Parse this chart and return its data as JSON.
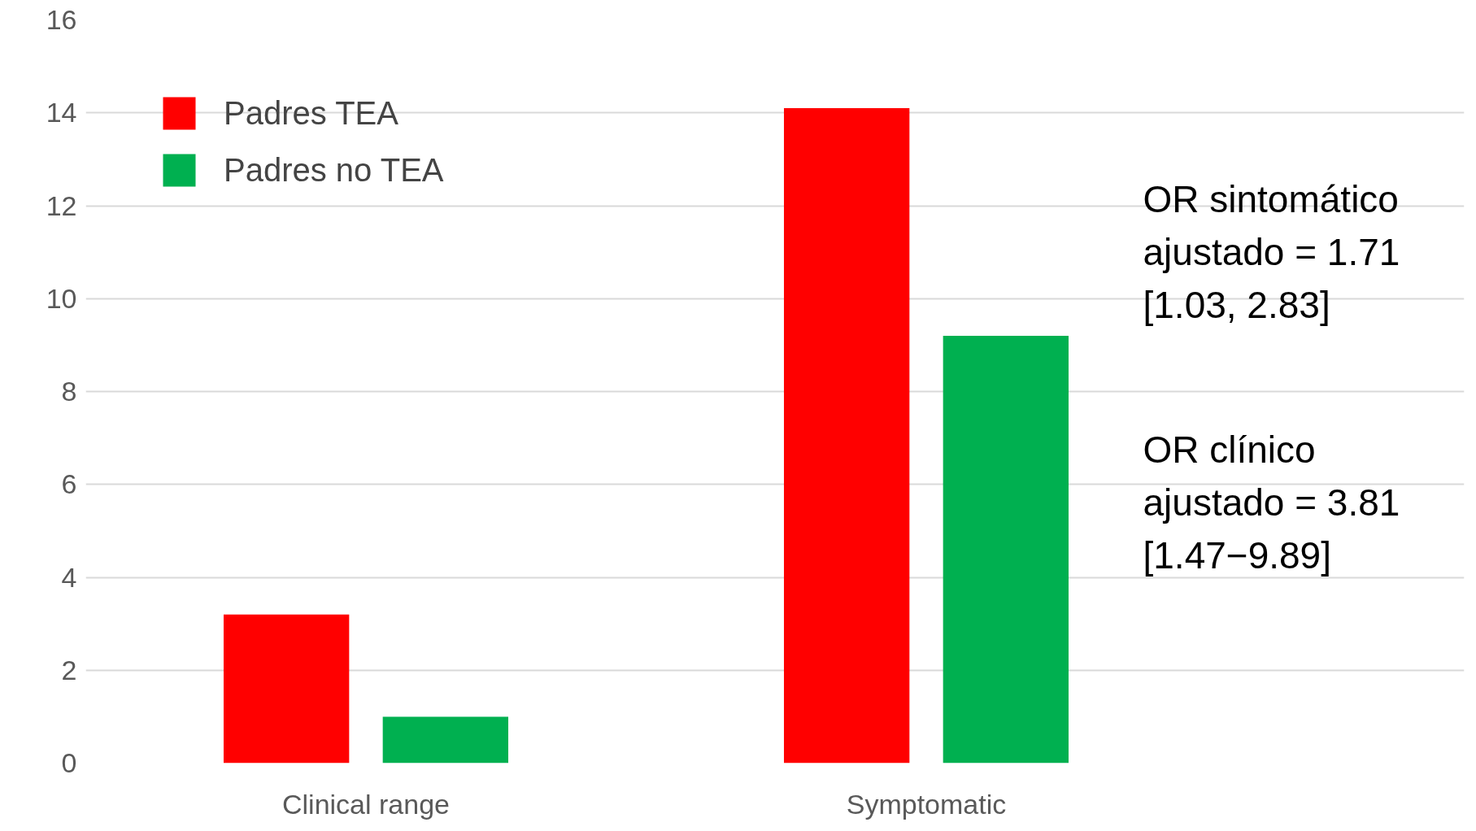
{
  "chart_data": {
    "type": "bar",
    "categories": [
      "Clinical range",
      "Symptomatic"
    ],
    "series": [
      {
        "name": "Padres TEA",
        "color": "#ff0000",
        "values": [
          3.2,
          14.1
        ]
      },
      {
        "name": "Padres no TEA",
        "color": "#00b050",
        "values": [
          1.0,
          9.2
        ]
      }
    ],
    "ylim": [
      0,
      16
    ],
    "yticks": [
      0,
      2,
      4,
      6,
      8,
      10,
      12,
      14,
      16
    ],
    "grid": "y",
    "legend": "top left",
    "annotations": [
      "OR sintomático\najustado = 1.71\n[1.03, 2.83]",
      "OR clínico\najustado = 3.81\n[1.47−9.89]"
    ]
  }
}
